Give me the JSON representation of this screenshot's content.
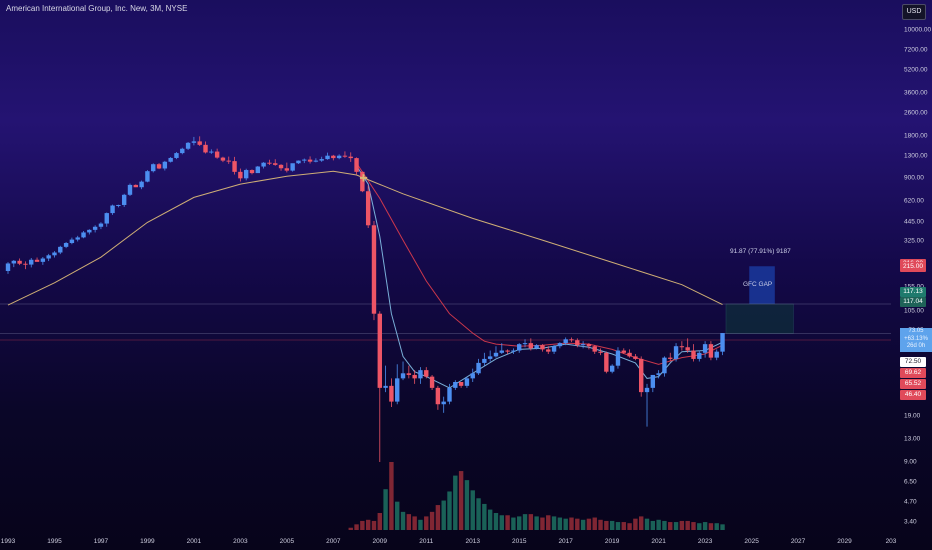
{
  "header": {
    "symbol_text": "American International Group, Inc. New, 3M, NYSE",
    "currency_button": "USD"
  },
  "annotations": {
    "measure_text": "91.87 (77.91%) 9187",
    "gap_label": "GFC GAP"
  },
  "price_tags": {
    "tag_red_top": "216.00",
    "tag_red_main": "215.00",
    "tag_green_1": "117.13",
    "tag_green_2": "117.04",
    "current_price": "73.05",
    "current_change": "+63.13%",
    "current_countdown": "26d 0h",
    "level_72": "72.50",
    "tag_69": "69.62",
    "tag_65": "65.52",
    "tag_46": "46.40"
  },
  "colors": {
    "up_candle": "#4c8ef0",
    "down_candle": "#ee5566",
    "ma_fast": "#7fb8e0",
    "ma_mid": "#d63a4c",
    "ma_slow": "#d9b777",
    "volume_up": "#1d6b5e",
    "volume_down": "#8e2a36",
    "gap_box": "#1b3fa8"
  },
  "chart_data": {
    "type": "candlestick",
    "title": "American International Group, Inc. New, 3M, NYSE",
    "xlabel": "",
    "ylabel": "",
    "yscale": "log",
    "y_ticks": [
      3.4,
      4.7,
      6.5,
      9.0,
      13.0,
      19.0,
      72.5,
      105.0,
      155.0,
      325.0,
      445.0,
      620.0,
      900.0,
      1300.0,
      1800.0,
      2600.0,
      3600.0,
      5200.0,
      7200.0,
      10000.0
    ],
    "x_ticks": [
      "1993",
      "1995",
      "1997",
      "1999",
      "2001",
      "2003",
      "2005",
      "2007",
      "2009",
      "2011",
      "2013",
      "2015",
      "2017",
      "2019",
      "2021",
      "2023",
      "2025",
      "2027",
      "2029",
      "203"
    ],
    "series": [
      {
        "name": "",
        "type": "candlestick",
        "x": [
          1993.0,
          1993.25,
          1993.5,
          1993.75,
          1994.0,
          1994.25,
          1994.5,
          1994.75,
          1995.0,
          1995.25,
          1995.5,
          1995.75,
          1996.0,
          1996.25,
          1996.5,
          1996.75,
          1997.0,
          1997.25,
          1997.5,
          1997.75,
          1998.0,
          1998.25,
          1998.5,
          1998.75,
          1999.0,
          1999.25,
          1999.5,
          1999.75,
          2000.0,
          2000.25,
          2000.5,
          2000.75,
          2001.0,
          2001.25,
          2001.5,
          2001.75,
          2002.0,
          2002.25,
          2002.5,
          2002.75,
          2003.0,
          2003.25,
          2003.5,
          2003.75,
          2004.0,
          2004.25,
          2004.5,
          2004.75,
          2005.0,
          2005.25,
          2005.5,
          2005.75,
          2006.0,
          2006.25,
          2006.5,
          2006.75,
          2007.0,
          2007.25,
          2007.5,
          2007.75,
          2008.0,
          2008.25,
          2008.5,
          2008.75,
          2009.0,
          2009.25,
          2009.5,
          2009.75,
          2010.0,
          2010.25,
          2010.5,
          2010.75,
          2011.0,
          2011.25,
          2011.5,
          2011.75,
          2012.0,
          2012.25,
          2012.5,
          2012.75,
          2013.0,
          2013.25,
          2013.5,
          2013.75,
          2014.0,
          2014.25,
          2014.5,
          2014.75,
          2015.0,
          2015.25,
          2015.5,
          2015.75,
          2016.0,
          2016.25,
          2016.5,
          2016.75,
          2017.0,
          2017.25,
          2017.5,
          2017.75,
          2018.0,
          2018.25,
          2018.5,
          2018.75,
          2019.0,
          2019.25,
          2019.5,
          2019.75,
          2020.0,
          2020.25,
          2020.5,
          2020.75,
          2021.0,
          2021.25,
          2021.5,
          2021.75,
          2022.0,
          2022.25,
          2022.5,
          2022.75,
          2023.0,
          2023.25,
          2023.5,
          2023.75
        ],
        "open": [
          200.0,
          226.0,
          236.0,
          225.0,
          222.0,
          240.0,
          232.0,
          245.0,
          258.0,
          270.0,
          296.0,
          315.0,
          333.0,
          345.0,
          374.0,
          390.0,
          410.0,
          432.0,
          512.0,
          579.0,
          584.0,
          689.0,
          809.0,
          779.0,
          853.0,
          1011.0,
          1132.0,
          1056.0,
          1178.0,
          1253.0,
          1356.0,
          1455.0,
          1602.0,
          1640.0,
          1550.0,
          1370.0,
          1390.0,
          1260.0,
          1200.0,
          1190.0,
          1000.0,
          900.0,
          1030.0,
          980.0,
          1090.0,
          1160.0,
          1150.0,
          1120.0,
          1060.0,
          1020.0,
          1150.0,
          1200.0,
          1220.0,
          1180.0,
          1200.0,
          1230.0,
          1300.0,
          1250.0,
          1300.0,
          1280.0,
          1250.0,
          1000.0,
          730.0,
          420.0,
          100.0,
          30.0,
          31.0,
          24.0,
          35.0,
          38.0,
          37.0,
          35.0,
          40.0,
          36.0,
          30.0,
          23.0,
          24.0,
          30.0,
          33.0,
          31.0,
          35.0,
          38.0,
          45.0,
          48.0,
          50.0,
          53.0,
          55.0,
          54.0,
          55.0,
          61.0,
          62.0,
          57.0,
          60.0,
          56.0,
          54.0,
          59.0,
          62.0,
          66.0,
          65.0,
          60.0,
          61.0,
          59.0,
          54.0,
          53.0,
          39.0,
          43.0,
          55.0,
          53.0,
          50.0,
          48.0,
          28.0,
          30.0,
          37.0,
          38.0,
          49.0,
          48.0,
          59.0,
          58.0,
          55.0,
          48.0,
          53.0,
          61.0,
          49.0,
          54.0
        ],
        "high": [
          231.0,
          239.0,
          245.0,
          234.0,
          247.0,
          249.0,
          251.0,
          264.0,
          276.0,
          301.0,
          320.0,
          344.0,
          354.0,
          383.0,
          394.0,
          420.0,
          441.0,
          517.0,
          587.0,
          587.0,
          700.0,
          828.0,
          816.0,
          868.0,
          1028.0,
          1148.0,
          1152.0,
          1195.0,
          1272.0,
          1379.0,
          1479.0,
          1625.0,
          1763.0,
          1779.0,
          1636.0,
          1441.0,
          1457.0,
          1277.0,
          1281.0,
          1276.0,
          1055.0,
          1052.0,
          1042.0,
          1100.0,
          1172.0,
          1217.0,
          1227.0,
          1133.0,
          1162.0,
          1137.0,
          1205.0,
          1241.0,
          1286.0,
          1246.0,
          1278.0,
          1367.0,
          1317.0,
          1329.0,
          1395.0,
          1372.0,
          1264.0,
          1007.0,
          802.0,
          450.0,
          104.0,
          43.0,
          35.0,
          44.0,
          46.0,
          43.0,
          40.0,
          42.0,
          42.0,
          37.0,
          31.0,
          26.0,
          32.0,
          34.0,
          33.0,
          36.0,
          41.0,
          48.0,
          53.0,
          55.0,
          59.0,
          62.0,
          56.0,
          57.0,
          62.0,
          66.0,
          67.0,
          61.0,
          61.0,
          59.0,
          60.0,
          63.0,
          68.0,
          68.0,
          67.0,
          64.0,
          62.0,
          60.0,
          57.0,
          54.0,
          44.0,
          58.0,
          57.0,
          56.0,
          52.0,
          50.0,
          32.0,
          35.0,
          40.0,
          50.0,
          53.0,
          62.0,
          64.0,
          67.0,
          61.0,
          55.0,
          64.0,
          64.0,
          56.0,
          73.0
        ],
        "low": [
          191.0,
          213.0,
          220.0,
          206.0,
          212.0,
          233.0,
          221.0,
          235.0,
          249.0,
          263.0,
          290.0,
          309.0,
          323.0,
          340.0,
          362.0,
          374.0,
          395.0,
          410.0,
          497.0,
          562.0,
          566.0,
          676.0,
          780.0,
          755.0,
          845.0,
          990.0,
          1045.0,
          1022.0,
          1164.0,
          1229.0,
          1330.0,
          1425.0,
          1538.0,
          1522.0,
          1347.0,
          1339.0,
          1237.0,
          1172.0,
          1138.0,
          958.0,
          855.0,
          871.0,
          960.0,
          986.0,
          1056.0,
          1118.0,
          1103.0,
          1017.0,
          991.0,
          1004.0,
          1135.0,
          1153.0,
          1145.0,
          1167.0,
          1176.0,
          1217.0,
          1205.0,
          1227.0,
          1254.0,
          1175.0,
          959.0,
          719.0,
          402.0,
          90.0,
          9.0,
          28.0,
          22.0,
          23.0,
          34.0,
          35.0,
          32.0,
          32.0,
          35.0,
          29.0,
          21.0,
          20.0,
          23.0,
          29.0,
          30.0,
          30.0,
          33.0,
          37.0,
          43.0,
          46.0,
          49.0,
          52.0,
          52.0,
          52.0,
          53.0,
          58.0,
          55.0,
          56.0,
          54.0,
          52.0,
          52.0,
          57.0,
          60.0,
          63.0,
          58.0,
          57.0,
          56.0,
          52.0,
          51.0,
          38.0,
          38.0,
          41.0,
          52.0,
          49.0,
          47.0,
          26.0,
          16.0,
          28.0,
          35.0,
          36.0,
          46.0,
          46.0,
          55.0,
          53.0,
          46.0,
          46.0,
          49.0,
          47.0,
          47.0,
          51.0
        ],
        "close": [
          226.0,
          236.0,
          225.0,
          222.0,
          240.0,
          232.0,
          245.0,
          258.0,
          270.0,
          296.0,
          315.0,
          333.0,
          345.0,
          374.0,
          390.0,
          410.0,
          432.0,
          512.0,
          579.0,
          584.0,
          689.0,
          809.0,
          779.0,
          853.0,
          1011.0,
          1132.0,
          1056.0,
          1178.0,
          1253.0,
          1356.0,
          1455.0,
          1602.0,
          1640.0,
          1550.0,
          1370.0,
          1390.0,
          1260.0,
          1200.0,
          1190.0,
          1000.0,
          900.0,
          1030.0,
          980.0,
          1090.0,
          1160.0,
          1150.0,
          1120.0,
          1060.0,
          1020.0,
          1150.0,
          1200.0,
          1220.0,
          1180.0,
          1200.0,
          1230.0,
          1300.0,
          1250.0,
          1300.0,
          1280.0,
          1250.0,
          1000.0,
          730.0,
          420.0,
          100.0,
          30.0,
          31.0,
          24.0,
          35.0,
          38.0,
          37.0,
          35.0,
          40.0,
          36.0,
          30.0,
          23.0,
          24.0,
          30.0,
          33.0,
          31.0,
          35.0,
          38.0,
          45.0,
          48.0,
          50.0,
          53.0,
          55.0,
          54.0,
          55.0,
          61.0,
          62.0,
          57.0,
          60.0,
          56.0,
          54.0,
          59.0,
          62.0,
          66.0,
          65.0,
          60.0,
          61.0,
          59.0,
          54.0,
          53.0,
          39.0,
          43.0,
          55.0,
          53.0,
          50.0,
          48.0,
          28.0,
          30.0,
          37.0,
          38.0,
          49.0,
          48.0,
          59.0,
          58.0,
          55.0,
          48.0,
          53.0,
          61.0,
          49.0,
          54.0,
          73.05
        ]
      },
      {
        "name": "",
        "type": "line",
        "color": "#7fb8e0",
        "x": [
          2008.0,
          2008.5,
          2009.0,
          2009.5,
          2010.0,
          2010.5,
          2011.0,
          2012.0,
          2013.0,
          2014.0,
          2015.0,
          2016.0,
          2017.0,
          2018.0,
          2019.0,
          2020.0,
          2020.5,
          2021.0,
          2021.5,
          2022.0,
          2023.0,
          2023.75
        ],
        "y": [
          1100.0,
          820.0,
          350.0,
          100.0,
          50.0,
          39.0,
          36.0,
          30.0,
          38.0,
          48.0,
          56.0,
          57.0,
          61.0,
          58.0,
          52.0,
          45.0,
          35.0,
          36.0,
          45.0,
          54.0,
          55.0,
          63.0
        ]
      },
      {
        "name": "",
        "type": "line",
        "color": "#d63a4c",
        "x": [
          2008.0,
          2009.0,
          2010.0,
          2011.0,
          2012.0,
          2013.0,
          2013.5,
          2014.0,
          2015.0,
          2016.0,
          2017.0,
          2018.0,
          2019.0,
          2020.0,
          2021.0,
          2022.0,
          2023.0,
          2023.75
        ],
        "y": [
          1150.0,
          650.0,
          330.0,
          170.0,
          100.0,
          73.0,
          64.0,
          61.0,
          59.0,
          60.0,
          62.0,
          61.0,
          56.0,
          49.0,
          44.0,
          49.0,
          52.0,
          60.0
        ]
      },
      {
        "name": "",
        "type": "line",
        "color": "#d9b777",
        "x": [
          1993.0,
          1995.0,
          1997.0,
          1999.0,
          2001.0,
          2003.0,
          2005.0,
          2007.0,
          2008.0,
          2010.0,
          2013.0,
          2016.0,
          2019.0,
          2022.0,
          2023.75
        ],
        "y": [
          115.0,
          165.0,
          250.0,
          440.0,
          660.0,
          820.0,
          930.0,
          1010.0,
          950.0,
          700.0,
          470.0,
          330.0,
          230.0,
          160.0,
          116.0
        ]
      },
      {
        "name": "",
        "type": "bar",
        "x": [
          2007.75,
          2008.0,
          2008.25,
          2008.5,
          2008.75,
          2009.0,
          2009.25,
          2009.5,
          2009.75,
          2010.0,
          2010.25,
          2010.5,
          2010.75,
          2011.0,
          2011.25,
          2011.5,
          2011.75,
          2012.0,
          2012.25,
          2012.5,
          2012.75,
          2013.0,
          2013.25,
          2013.5,
          2013.75,
          2014.0,
          2014.25,
          2014.5,
          2014.75,
          2015.0,
          2015.25,
          2015.5,
          2015.75,
          2016.0,
          2016.25,
          2016.5,
          2016.75,
          2017.0,
          2017.25,
          2017.5,
          2017.75,
          2018.0,
          2018.25,
          2018.5,
          2018.75,
          2019.0,
          2019.25,
          2019.5,
          2019.75,
          2020.0,
          2020.25,
          2020.5,
          2020.75,
          2021.0,
          2021.25,
          2021.5,
          2021.75,
          2022.0,
          2022.25,
          2022.5,
          2022.75,
          2023.0,
          2023.25,
          2023.5,
          2023.75
        ],
        "y": [
          2.0,
          5.0,
          8.0,
          9.0,
          8.0,
          15.0,
          36.0,
          60.0,
          25.0,
          16.0,
          14.0,
          12.0,
          9.0,
          12.0,
          16.0,
          22.0,
          26.0,
          34.0,
          48.0,
          52.0,
          44.0,
          35.0,
          28.0,
          23.0,
          18.0,
          15.0,
          13.0,
          13.0,
          11.0,
          12.0,
          14.0,
          14.0,
          12.0,
          11.0,
          13.0,
          12.0,
          11.0,
          10.0,
          11.0,
          10.0,
          9.0,
          10.0,
          11.0,
          9.0,
          8.0,
          8.0,
          7.0,
          7.0,
          6.0,
          10.0,
          12.0,
          10.0,
          8.0,
          9.0,
          8.0,
          7.0,
          7.0,
          8.0,
          8.0,
          7.0,
          6.0,
          7.0,
          6.0,
          6.0,
          5.0
        ]
      }
    ],
    "gap_box": {
      "x_range": [
        2024.9,
        2026.0
      ],
      "y_range": [
        117.04,
        216.0
      ]
    },
    "levels": [
      72.5,
      117.04
    ],
    "grid": false,
    "legend": "none"
  }
}
